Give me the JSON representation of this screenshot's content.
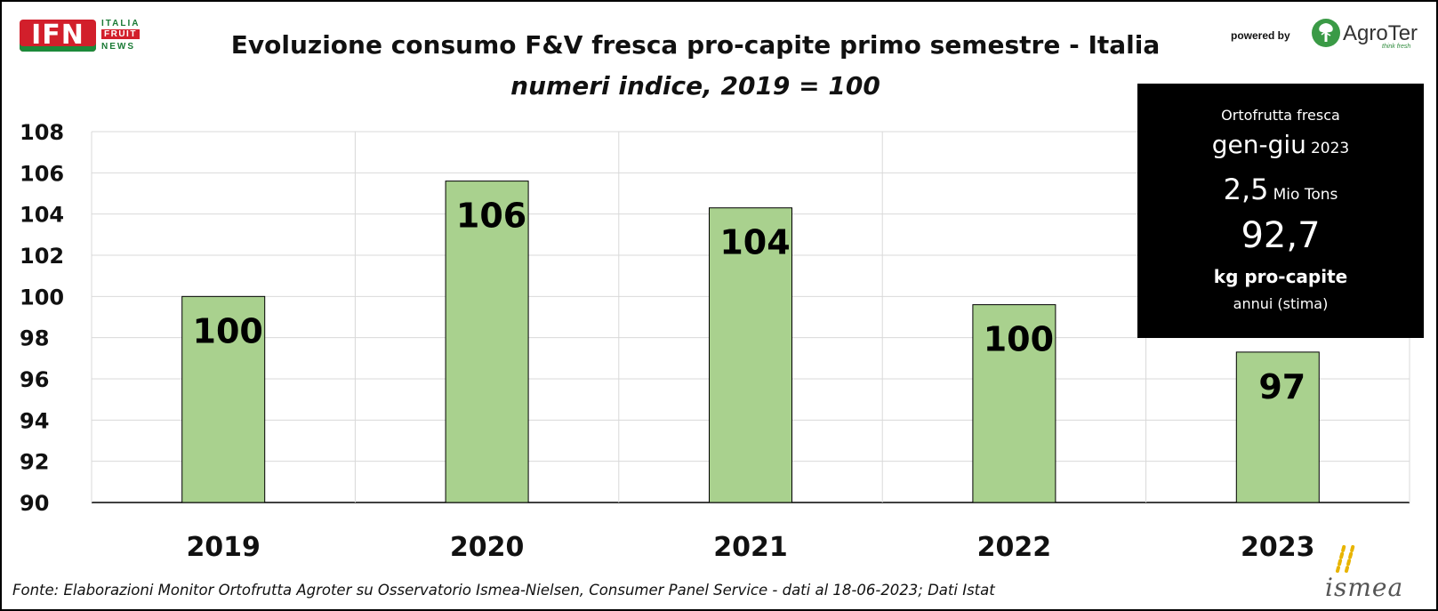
{
  "header": {
    "logo_ifn": {
      "mark": "IFN",
      "words": [
        "ITALIA",
        "FRUIT",
        "NEWS"
      ]
    },
    "powered_by": "powered by",
    "agroter": {
      "name": "AgroTer",
      "tagline": "think fresh",
      "icon": "tree-icon"
    },
    "colors": {
      "ifn_red": "#d21f2b",
      "ifn_green": "#1a7a35",
      "agroter_green": "#2e8b3c"
    }
  },
  "chart_data": {
    "type": "bar",
    "title": "Evoluzione consumo F&V fresca pro-capite primo semestre - Italia",
    "subtitle": "numeri indice, 2019 = 100",
    "categories": [
      "2019",
      "2020",
      "2021",
      "2022",
      "2023"
    ],
    "values": [
      100,
      105.6,
      104.3,
      99.6,
      97.3
    ],
    "data_labels": [
      "100",
      "106",
      "104",
      "100",
      "97"
    ],
    "ylim": [
      90,
      108
    ],
    "yticks": [
      "90",
      "92",
      "94",
      "96",
      "98",
      "100",
      "102",
      "104",
      "106",
      "108"
    ],
    "xlabel": "",
    "ylabel": "",
    "grid": true,
    "legend": "none",
    "bar_color": "#a9d18e",
    "bar_edge_color": "#000000"
  },
  "info_box": {
    "title": "Ortofrutta fresca",
    "period": "gen-giu",
    "year": "2023",
    "volume": "2,5",
    "volume_unit": "Mio Tons",
    "per_capita": "92,7",
    "per_capita_unit": "kg pro-capite",
    "note": "annui (stima)"
  },
  "source": "Fonte: Elaborazioni Monitor Ortofrutta Agroter su Osservatorio Ismea-Nielsen, Consumer Panel Service - dati al 18-06-2023; Dati Istat",
  "ismea_logo": {
    "name": "ismea",
    "icon": "ismea-mark-icon"
  }
}
